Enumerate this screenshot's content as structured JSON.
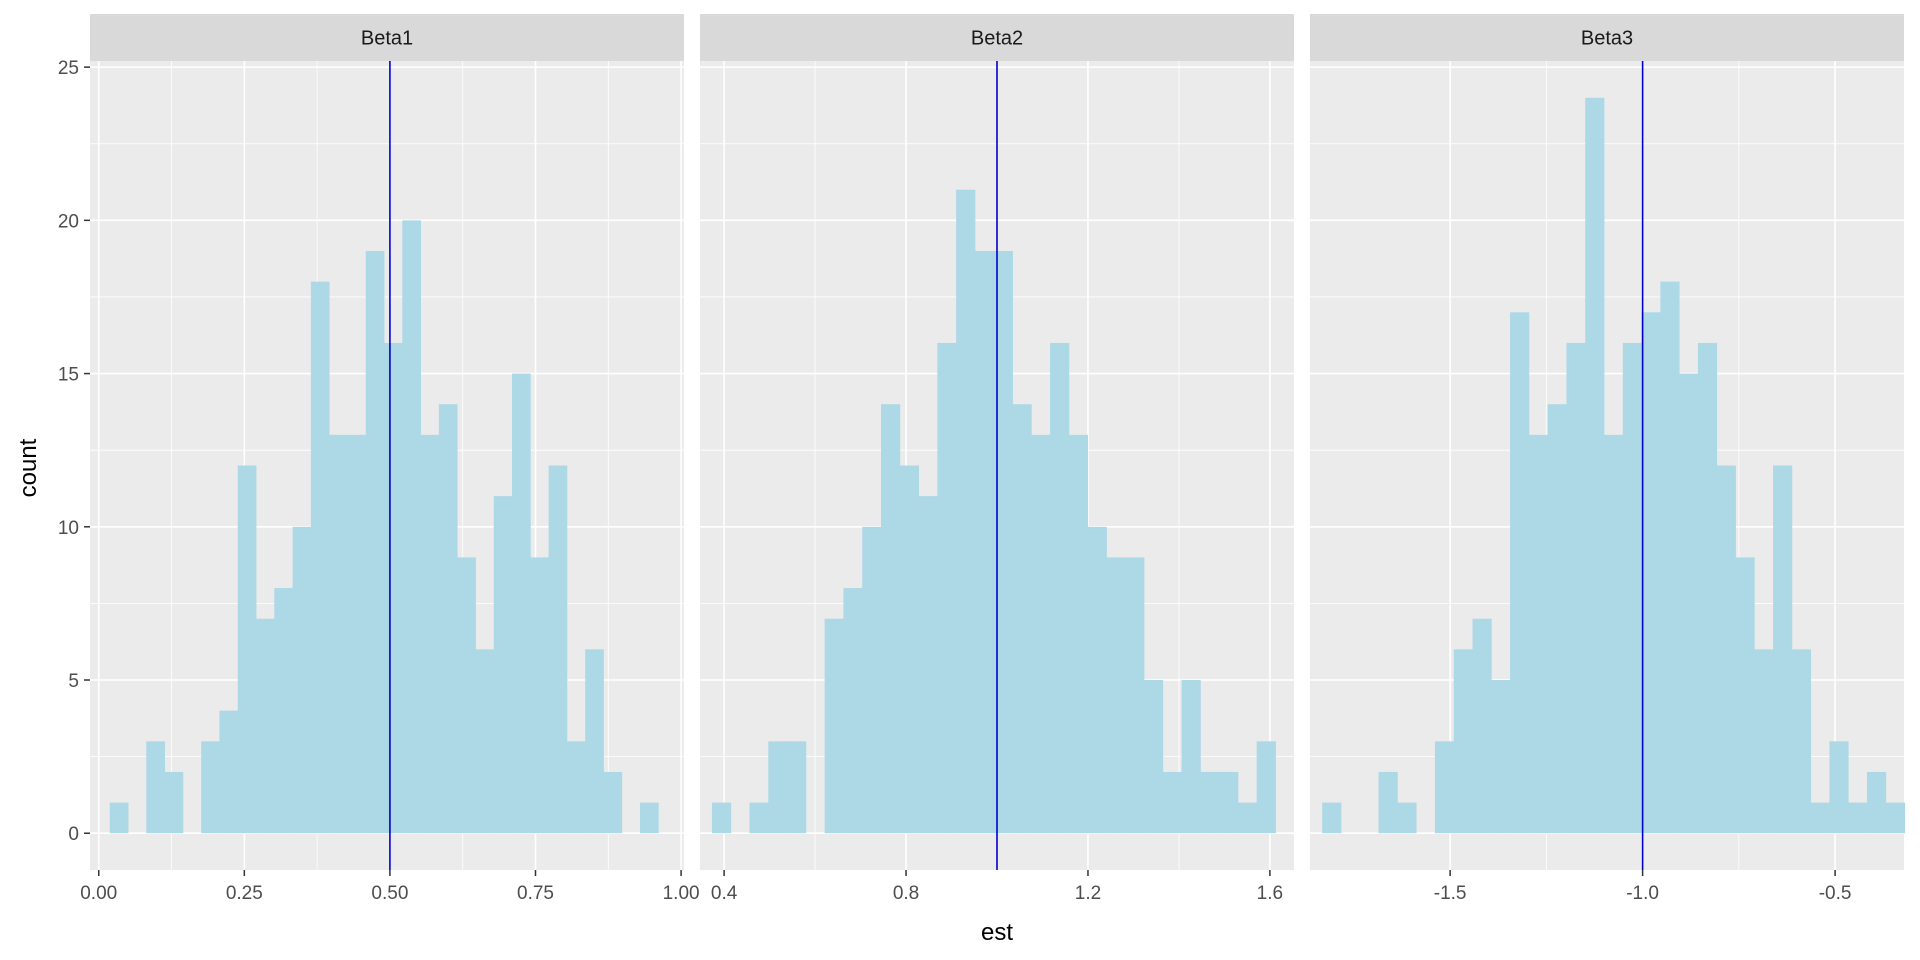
{
  "chart_data": {
    "type": "bar",
    "subtype": "faceted-histogram",
    "xlabel": "est",
    "ylabel": "count",
    "ylim": [
      -1.2,
      25.2
    ],
    "yticks": [
      0,
      5,
      10,
      15,
      20,
      25
    ],
    "yticklabels": [
      "0",
      "5",
      "10",
      "15",
      "20",
      "25"
    ],
    "grid": true,
    "colors": {
      "bar_fill": "#add8e6",
      "reference_line": "#0000cd",
      "panel_bg": "#ebebeb",
      "strip_bg": "#d9d9d9",
      "grid": "#ffffff",
      "tick_text": "#4d4d4d"
    },
    "panels": [
      {
        "strip": "Beta1",
        "xlim": [
          -0.015,
          1.005
        ],
        "xticks": [
          0.0,
          0.25,
          0.5,
          0.75,
          1.0
        ],
        "xticklabels": [
          "0.00",
          "0.25",
          "0.50",
          "0.75",
          "1.00"
        ],
        "reference_x": 0.5,
        "bin_start": 0.0189,
        "bin_width": 0.0314,
        "counts": [
          1,
          0,
          3,
          2,
          0,
          3,
          4,
          12,
          7,
          8,
          10,
          18,
          13,
          13,
          19,
          16,
          20,
          13,
          14,
          9,
          6,
          11,
          15,
          9,
          12,
          3,
          6,
          2,
          0,
          1
        ]
      },
      {
        "strip": "Beta2",
        "xlim": [
          0.347,
          1.653
        ],
        "xticks": [
          0.4,
          0.8,
          1.2,
          1.6
        ],
        "xticklabels": [
          "0.4",
          "0.8",
          "1.2",
          "1.6"
        ],
        "reference_x": 1.0,
        "bin_start": 0.3733,
        "bin_width": 0.0413,
        "counts": [
          1,
          0,
          1,
          3,
          3,
          0,
          7,
          8,
          10,
          14,
          12,
          11,
          16,
          21,
          19,
          19,
          14,
          13,
          16,
          13,
          10,
          9,
          9,
          5,
          2,
          5,
          2,
          2,
          1,
          3
        ]
      },
      {
        "strip": "Beta3",
        "xlim": [
          -1.864,
          -0.321
        ],
        "xticks": [
          -1.5,
          -1.0,
          -0.5
        ],
        "xticklabels": [
          "-1.5",
          "-1.0",
          "-0.5"
        ],
        "reference_x": -1.0,
        "bin_start": -1.8323,
        "bin_width": 0.0488,
        "counts": [
          1,
          0,
          0,
          2,
          1,
          0,
          3,
          6,
          7,
          5,
          17,
          13,
          14,
          16,
          24,
          13,
          16,
          17,
          18,
          15,
          16,
          12,
          9,
          6,
          12,
          6,
          1,
          3,
          1,
          2,
          1
        ]
      }
    ]
  }
}
